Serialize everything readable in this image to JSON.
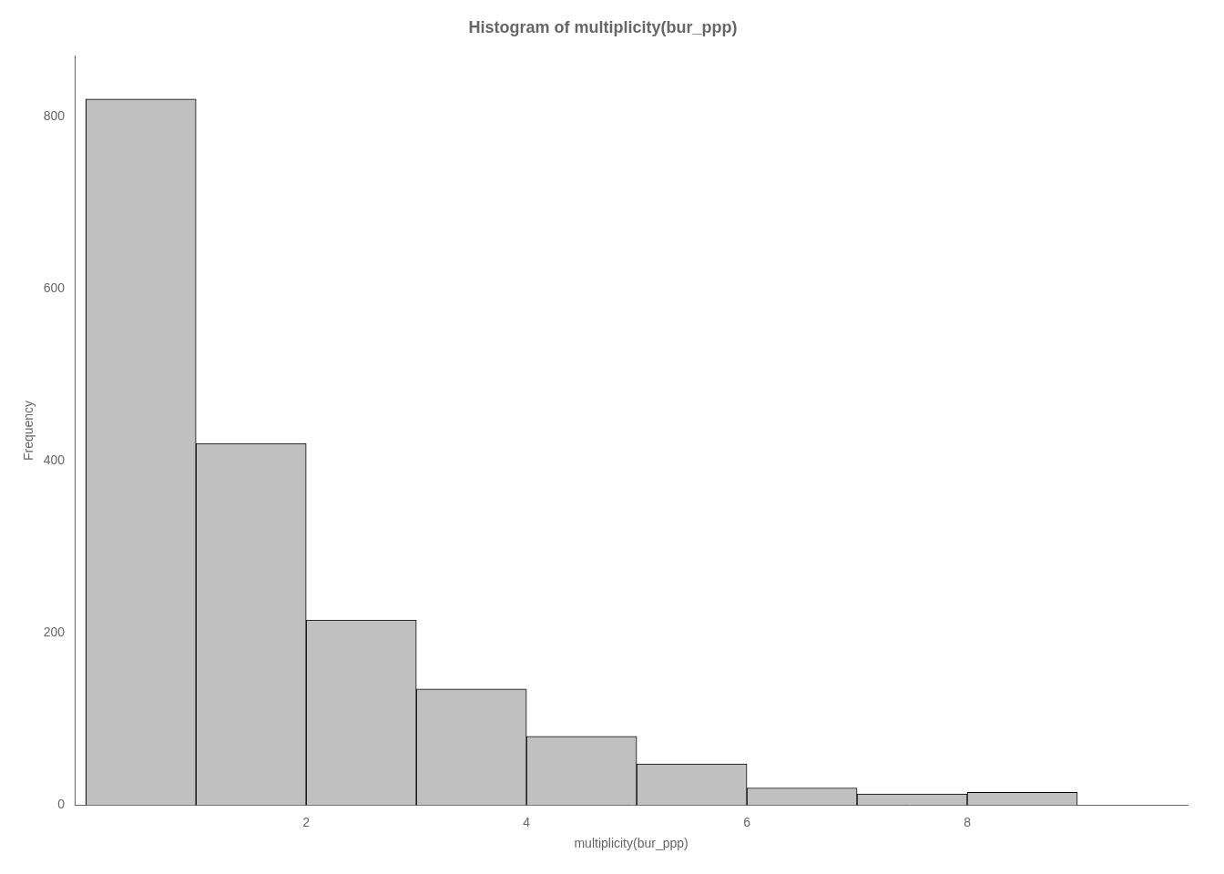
{
  "chart_data": {
    "type": "histogram",
    "title": "Histogram of multiplicity(bur_ppp)",
    "xlabel": "multiplicity(bur_ppp)",
    "ylabel": "Frequency",
    "bins": [
      0,
      1,
      2,
      3,
      4,
      5,
      6,
      7,
      8,
      9
    ],
    "values": [
      820,
      420,
      215,
      135,
      80,
      48,
      20,
      13,
      15
    ],
    "color": "#c0c0c0",
    "xlim": [
      -0.1,
      10
    ],
    "ylim": [
      0,
      870
    ],
    "xticks": [
      2,
      4,
      6,
      8
    ],
    "yticks": [
      0,
      200,
      400,
      600,
      800
    ],
    "grid": false
  }
}
